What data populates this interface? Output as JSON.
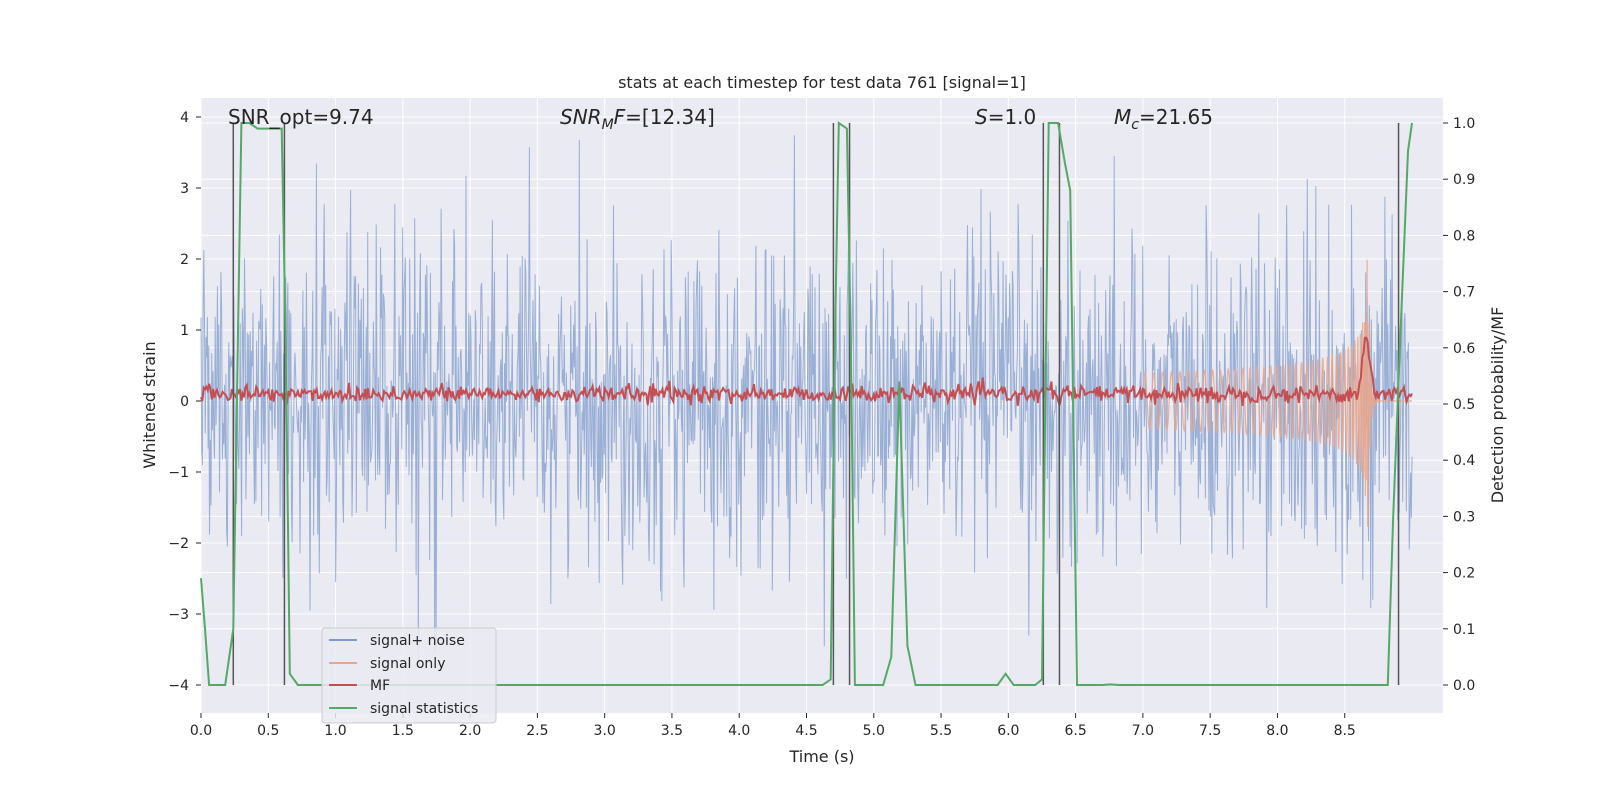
{
  "chart_data": {
    "type": "line",
    "title": "stats at each timestep for test data 761 [signal=1]",
    "xlabel": "Time (s)",
    "ylabel": "Whitened strain",
    "y2label": "Detection probability/MF",
    "xlim": [
      0.0,
      9.0
    ],
    "ylim": [
      -4.35,
      4.3
    ],
    "y2lim": [
      -0.05,
      1.04
    ],
    "x_ticks": [
      "0.0",
      "0.5",
      "1.0",
      "1.5",
      "2.0",
      "2.5",
      "3.0",
      "3.5",
      "4.0",
      "4.5",
      "5.0",
      "5.5",
      "6.0",
      "6.5",
      "7.0",
      "7.5",
      "8.0",
      "8.5"
    ],
    "y_ticks": [
      "4",
      "3",
      "2",
      "1",
      "0",
      "−1",
      "−2",
      "−3",
      "−4"
    ],
    "y2_ticks": [
      "1.0",
      "0.9",
      "0.8",
      "0.7",
      "0.6",
      "0.5",
      "0.4",
      "0.3",
      "0.2",
      "0.1",
      "0.0"
    ],
    "annotations": {
      "snr_opt": "SNR_opt=9.74",
      "snr_mf_sym": "SNR",
      "snr_mf_sub": "M",
      "snr_mf_f": "F",
      "snr_mf_val": "=[12.34]",
      "s_sym": "S",
      "s_val": "=1.0",
      "mc_sym": "M",
      "mc_sub": "c",
      "mc_val": "=21.65"
    },
    "legend": {
      "noise": "signal+ noise",
      "signal": "signal only",
      "mf": "MF",
      "stats": "signal statistics"
    },
    "colors": {
      "noise": "#7f9bcb",
      "signal": "#eaa68a",
      "mf": "#c44e52",
      "stats": "#55a868",
      "vline": "#555555"
    },
    "noise_envelope": {
      "description": "whitened strain noise, approx gaussian with sigma ~1.1",
      "sigma": 1.1,
      "ymin": -4.0,
      "ymax": 3.9
    },
    "signal_chirp": {
      "t_start": 7.0,
      "t_merger": 8.67,
      "peak_amplitude": 2.05
    },
    "mf_series": {
      "baseline": 0.1,
      "noise_amp": 0.06,
      "peak_time": 8.66,
      "peak_value": 1.0
    },
    "signal_statistics": {
      "x": [
        0.0,
        0.03,
        0.06,
        0.12,
        0.18,
        0.24,
        0.27,
        0.3,
        0.36,
        0.42,
        0.48,
        0.54,
        0.6,
        0.63,
        0.66,
        0.72,
        0.78,
        0.84,
        0.9,
        1.0,
        2.0,
        3.0,
        4.0,
        4.5,
        4.62,
        4.68,
        4.71,
        4.74,
        4.8,
        4.83,
        4.86,
        5.0,
        5.07,
        5.13,
        5.19,
        5.25,
        5.31,
        5.5,
        5.85,
        5.92,
        5.98,
        6.04,
        6.2,
        6.25,
        6.3,
        6.37,
        6.42,
        6.46,
        6.51,
        6.7,
        6.76,
        6.82,
        7.0,
        8.0,
        8.5,
        8.82,
        8.86,
        8.91,
        8.97,
        9.0
      ],
      "y": [
        0.19,
        0.1,
        0.0,
        0.0,
        0.0,
        0.1,
        0.55,
        1.0,
        1.0,
        0.99,
        0.99,
        0.99,
        0.99,
        0.6,
        0.02,
        0.0,
        0.0,
        0.0,
        0.0,
        0.0,
        0.0,
        0.0,
        0.0,
        0.0,
        0.0,
        0.01,
        0.6,
        1.0,
        0.99,
        0.6,
        0.0,
        0.0,
        0.0,
        0.05,
        0.54,
        0.07,
        0.0,
        0.0,
        0.0,
        0.0,
        0.02,
        0.0,
        0.0,
        0.01,
        1.0,
        1.0,
        0.93,
        0.88,
        0.0,
        0.0,
        0.001,
        0.0,
        0.0,
        0.0,
        0.0,
        0.0,
        0.3,
        0.6,
        0.95,
        1.0
      ]
    },
    "vertical_lines_x": [
      0.24,
      0.62,
      4.7,
      4.82,
      6.26,
      6.38,
      8.9
    ],
    "grid": true
  }
}
